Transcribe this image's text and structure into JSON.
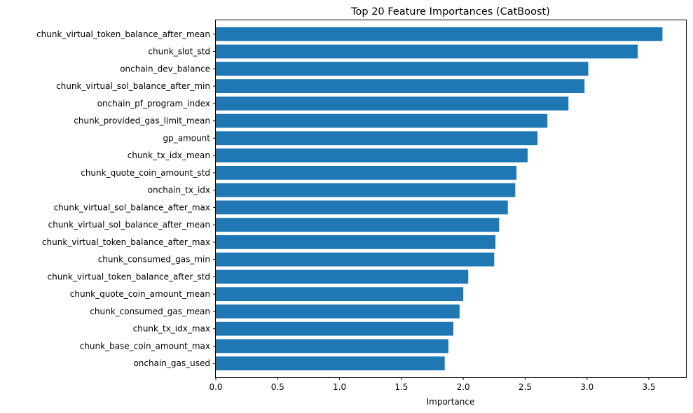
{
  "chart_data": {
    "type": "bar",
    "orientation": "horizontal",
    "title": "Top 20 Feature Importances (CatBoost)",
    "xlabel": "Importance",
    "ylabel": "",
    "xlim": [
      0,
      3.8
    ],
    "xticks": [
      "0.0",
      "0.5",
      "1.0",
      "1.5",
      "2.0",
      "2.5",
      "3.0",
      "3.5"
    ],
    "grid": false,
    "bar_color": "#1f77b4",
    "categories": [
      "chunk_virtual_token_balance_after_mean",
      "chunk_slot_std",
      "onchain_dev_balance",
      "chunk_virtual_sol_balance_after_min",
      "onchain_pf_program_index",
      "chunk_provided_gas_limit_mean",
      "gp_amount",
      "chunk_tx_idx_mean",
      "chunk_quote_coin_amount_std",
      "onchain_tx_idx",
      "chunk_virtual_sol_balance_after_max",
      "chunk_virtual_sol_balance_after_mean",
      "chunk_virtual_token_balance_after_max",
      "chunk_consumed_gas_min",
      "chunk_virtual_token_balance_after_std",
      "chunk_quote_coin_amount_mean",
      "chunk_consumed_gas_mean",
      "chunk_tx_idx_max",
      "chunk_base_coin_amount_max",
      "onchain_gas_used"
    ],
    "values": [
      3.61,
      3.41,
      3.01,
      2.98,
      2.85,
      2.68,
      2.6,
      2.52,
      2.43,
      2.42,
      2.36,
      2.29,
      2.26,
      2.25,
      2.04,
      2.0,
      1.97,
      1.92,
      1.88,
      1.85
    ]
  }
}
